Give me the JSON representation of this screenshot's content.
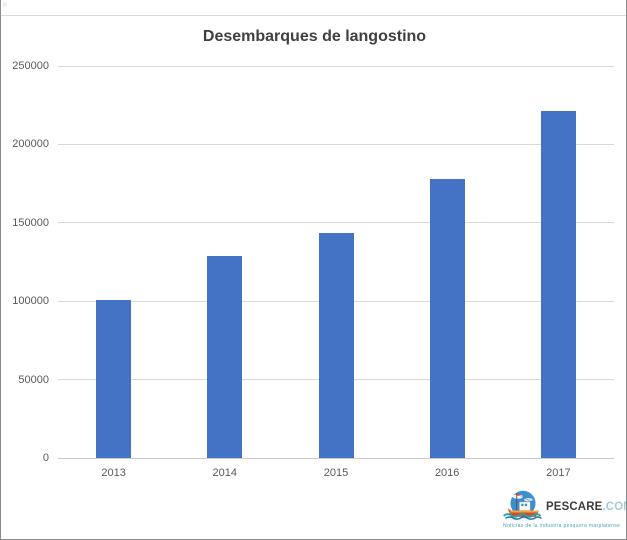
{
  "chart_data": {
    "type": "bar",
    "title": "Desembarques de langostino",
    "categories": [
      "2013",
      "2014",
      "2015",
      "2016",
      "2017"
    ],
    "values": [
      101000,
      129000,
      143500,
      178000,
      221000
    ],
    "xlabel": "",
    "ylabel": "",
    "ylim": [
      0,
      250000
    ],
    "ytick_step": 50000,
    "ytick_labels": [
      "0",
      "50000",
      "100000",
      "150000",
      "200000",
      "250000"
    ],
    "grid": true,
    "legend": "none",
    "bar_color": "#4472c4",
    "gridline_color": "#d9d9d9",
    "axis_line_color": "#c9c9c9",
    "label_color": "#595959",
    "title_color": "#404040"
  },
  "branding": {
    "name_primary": "PESCARE",
    "name_secondary": ".COM.AR",
    "tagline": "Noticias de la industria pesquera marplatense",
    "primary_color": "#3b3b3b",
    "secondary_color": "#a3cbd9",
    "tagline_color": "#45a5b5",
    "icon": "fishing-boat-icon"
  },
  "artifacts": {
    "corner_mark": "ᴿ"
  }
}
